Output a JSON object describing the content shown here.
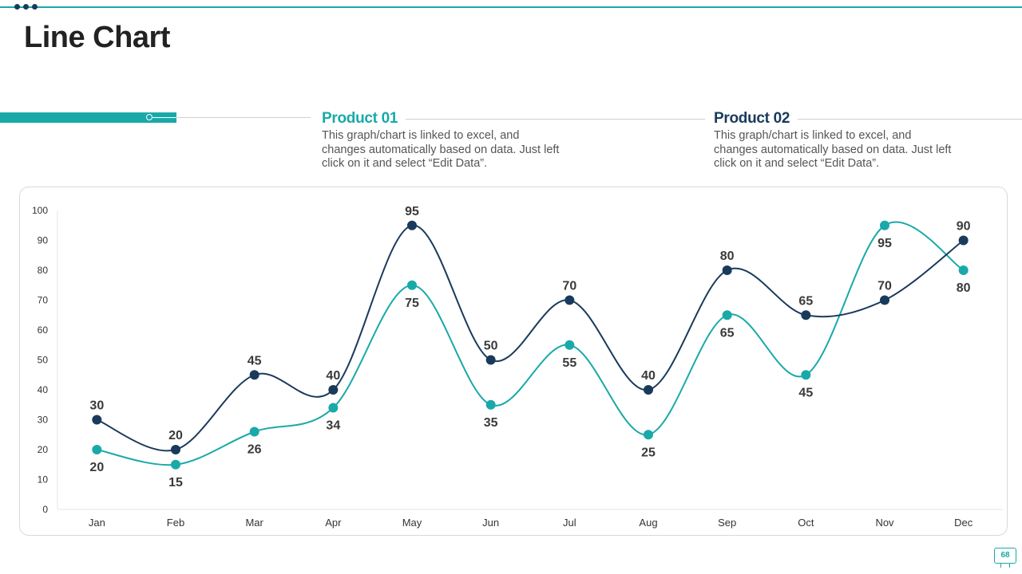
{
  "page": {
    "title": "Line Chart",
    "page_number": "68"
  },
  "legend": [
    {
      "title": "Product 01",
      "description": "This graph/chart is linked to excel, and changes automatically based on data. Just left click on it and select “Edit Data”."
    },
    {
      "title": "Product 02",
      "description": "This graph/chart is linked to excel, and changes automatically based on data. Just left click on it and select “Edit Data”."
    }
  ],
  "colors": {
    "accent": "#1aa9a9",
    "dark": "#1a3a5c",
    "grid": "#e6e6e6",
    "axis_text": "#333333"
  },
  "chart_data": {
    "type": "line",
    "title": "",
    "xlabel": "",
    "ylabel": "",
    "categories": [
      "Jan",
      "Feb",
      "Mar",
      "Apr",
      "May",
      "Jun",
      "Jul",
      "Aug",
      "Sep",
      "Oct",
      "Nov",
      "Dec"
    ],
    "ylim": [
      0,
      100
    ],
    "yticks": [
      0,
      10,
      20,
      30,
      40,
      50,
      60,
      70,
      80,
      90,
      100
    ],
    "smooth": true,
    "grid": false,
    "series": [
      {
        "name": "Product 01",
        "color": "#1aa9a9",
        "values": [
          20,
          15,
          26,
          34,
          75,
          35,
          55,
          25,
          65,
          45,
          95,
          80
        ],
        "label_position": [
          "below",
          "below",
          "below",
          "below",
          "below",
          "below",
          "below",
          "below",
          "below",
          "below",
          "below",
          "below"
        ]
      },
      {
        "name": "Product 02",
        "color": "#1a3a5c",
        "values": [
          30,
          20,
          45,
          40,
          95,
          50,
          70,
          40,
          80,
          65,
          70,
          90
        ],
        "label_position": [
          "above",
          "above",
          "above",
          "above",
          "above",
          "above",
          "above",
          "above",
          "above",
          "above",
          "above",
          "above"
        ]
      }
    ]
  }
}
